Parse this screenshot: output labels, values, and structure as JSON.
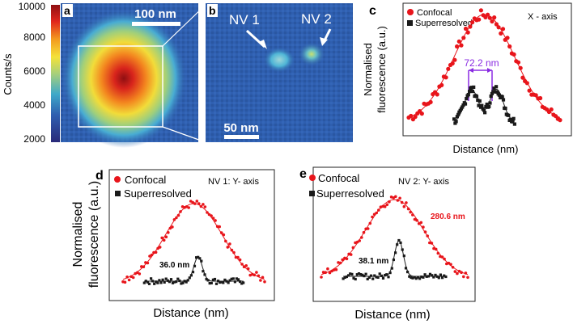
{
  "colorbar": {
    "ylabel": "Counts/s",
    "ticks": [
      "10000",
      "8000",
      "6000",
      "4000",
      "2000"
    ]
  },
  "panel_a": {
    "letter": "a",
    "scalebar_label": "100 nm"
  },
  "panel_b": {
    "letter": "b",
    "scalebar_label": "50 nm",
    "nv1_label": "NV 1",
    "nv2_label": "NV 2"
  },
  "panel_c": {
    "letter": "c",
    "legend_confocal": "Confocal",
    "legend_super": "Superresolved",
    "axis_note": "X - axis",
    "fwhm_label": "72.2 nm",
    "xlabel": "Distance (nm)",
    "ylabel_line1": "Normalised",
    "ylabel_line2": "fluorescence (a.u.)"
  },
  "panel_d": {
    "letter": "d",
    "legend_confocal": "Confocal",
    "legend_super": "Superresolved",
    "axis_note": "NV 1: Y- axis",
    "fwhm_label": "36.0 nm",
    "xlabel": "Distance (nm)",
    "ylabel_line1": "Normalised",
    "ylabel_line2": "fluorescence (a.u.)"
  },
  "panel_e": {
    "letter": "e",
    "legend_confocal": "Confocal",
    "legend_super": "Superresolved",
    "axis_note": "NV 2: Y- axis",
    "fwhm_label": "38.1 nm",
    "confocal_fwhm_label": "280.6 nm",
    "xlabel": "Distance (nm)"
  },
  "colors": {
    "confocal": "#e8151b",
    "super": "#1a1a1a",
    "arrow": "#8a2be2",
    "map_bg": "#2c5cab"
  },
  "chart_data": [
    {
      "panel": "c",
      "type": "scatter",
      "title": "X - axis",
      "xlabel": "Distance (nm)",
      "ylabel": "Normalised fluorescence (a.u.)",
      "ylim": [
        0,
        1.05
      ],
      "series": [
        {
          "name": "Confocal",
          "marker": "circle",
          "peak": 1.0,
          "center": 0.5,
          "sigma": 0.2,
          "baseline": 0.02
        },
        {
          "name": "Superresolved",
          "marker": "square",
          "peak": 0.3,
          "center": 0.5,
          "fwhm_nm": 72.2,
          "double_peak": true,
          "baseline": 0.02
        }
      ]
    },
    {
      "panel": "d",
      "type": "scatter",
      "title": "NV 1: Y- axis",
      "xlabel": "Distance (nm)",
      "ylabel": "Normalised fluorescence (a.u.)",
      "ylim": [
        0,
        1.05
      ],
      "series": [
        {
          "name": "Confocal",
          "marker": "circle",
          "peak": 1.0,
          "center": 0.5,
          "sigma": 0.2,
          "baseline": 0.02
        },
        {
          "name": "Superresolved",
          "marker": "square",
          "peak": 0.3,
          "center": 0.53,
          "fwhm_nm": 36.0,
          "baseline": 0.04
        }
      ]
    },
    {
      "panel": "e",
      "type": "scatter",
      "title": "NV 2: Y- axis",
      "xlabel": "Distance (nm)",
      "ylabel": "Normalised fluorescence (a.u.)",
      "ylim": [
        0,
        1.05
      ],
      "series": [
        {
          "name": "Confocal",
          "marker": "circle",
          "peak": 1.0,
          "center": 0.5,
          "sigma": 0.2,
          "fwhm_nm": 280.6,
          "baseline": 0.02
        },
        {
          "name": "Superresolved",
          "marker": "square",
          "peak": 0.45,
          "center": 0.53,
          "fwhm_nm": 38.1,
          "baseline": 0.04
        }
      ]
    }
  ]
}
